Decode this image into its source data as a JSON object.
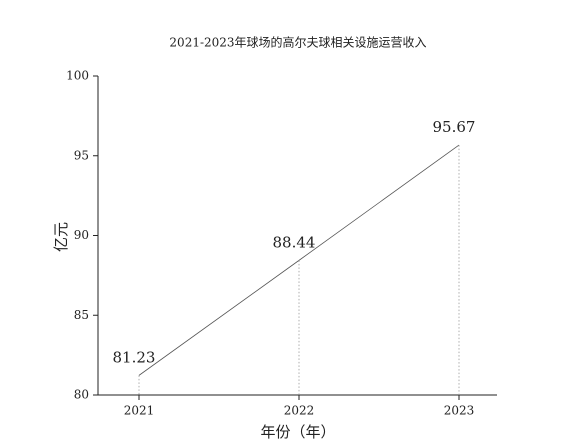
{
  "chart_data": {
    "type": "line",
    "title": "2021-2023年球场的高尔夫球相关设施运营收入",
    "y_label": "亿元",
    "x_label": "年份（年）",
    "categories": [
      "2021",
      "2022",
      "2023"
    ],
    "values": [
      81.23,
      88.44,
      95.67
    ],
    "color": "#555555",
    "ylim": [
      80,
      100
    ],
    "yticks": [
      80,
      85,
      90,
      95,
      100
    ]
  }
}
